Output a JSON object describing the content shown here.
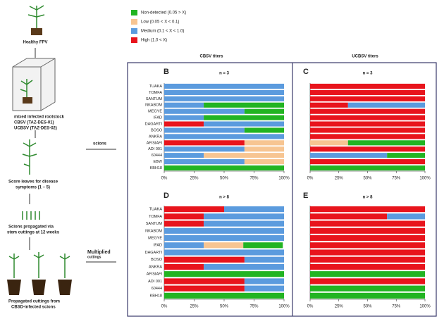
{
  "diagram": {
    "healthy": "Healthy FPV",
    "rootstock": "mixed infected rootstock",
    "cbsv_isolate": "CBSV (TAZ-DES-01)",
    "ucbsv_isolate": "UCBSV (TAZ-DES-02)",
    "scions": "scions",
    "score": "Score leaves for disease",
    "score2": "symptoms (1 – 5)",
    "propagated": "Scions propagated via",
    "propagated2": "stem cuttings at 12 weeks",
    "multiplied": "Multiplied",
    "multiplied2": "cuttings",
    "cuttings": "Propagated cuttings from",
    "cuttings2": "CBSD-infected  scions",
    "cbsv_header": "CBSV titers",
    "ucbsv_header": "UCBSV titers"
  },
  "chart_data": [
    {
      "type": "stacked-bar",
      "label": "B",
      "n_label": "n = 3",
      "categories": [
        "TUAKA",
        "TOMFA",
        "SANTUM",
        "NKABOM",
        "MEGYE",
        "IFAD",
        "DAGARTI",
        "BOSO",
        "ANKRA",
        "AFISIAFI",
        "ADI 001",
        "60444",
        "EBW",
        "KBH18"
      ],
      "series": [
        {
          "name": "Non-detected (0.05 > X)",
          "color": "#22b422",
          "values": [
            0,
            0,
            0,
            67,
            33,
            67,
            0,
            33,
            0,
            0,
            0,
            0,
            0,
            100
          ]
        },
        {
          "name": "Low (0.05 < X < 0.1)",
          "color": "#f7c592",
          "values": [
            0,
            0,
            0,
            0,
            0,
            0,
            0,
            0,
            0,
            33,
            33,
            67,
            33,
            0
          ]
        },
        {
          "name": "Medium (0.1 < X < 1.0)",
          "color": "#5b9bde",
          "values": [
            100,
            100,
            100,
            33,
            67,
            33,
            67,
            67,
            100,
            0,
            67,
            33,
            67,
            0
          ]
        },
        {
          "name": "High (1.0 < X)",
          "color": "#e8141c",
          "values": [
            0,
            0,
            0,
            0,
            0,
            0,
            33,
            0,
            0,
            67,
            0,
            0,
            0,
            0
          ]
        }
      ],
      "xlim": [
        0,
        100
      ],
      "xticks": [
        {
          "value": 0,
          "label": "0%"
        },
        {
          "value": 25,
          "label": "25%"
        },
        {
          "value": 50,
          "label": "50%"
        },
        {
          "value": 75,
          "label": "75%"
        },
        {
          "value": 100,
          "label": "100%"
        }
      ]
    },
    {
      "type": "stacked-bar",
      "label": "C",
      "n_label": "n = 3",
      "categories": [
        null,
        null,
        null,
        null,
        null,
        null,
        null,
        null,
        null,
        null,
        null,
        null,
        null,
        null
      ],
      "series": [
        {
          "color": "#22b422",
          "values": [
            0,
            0,
            0,
            0,
            0,
            0,
            0,
            0,
            0,
            67,
            0,
            33,
            0,
            100
          ]
        },
        {
          "color": "#f7c592",
          "values": [
            0,
            0,
            0,
            0,
            0,
            0,
            0,
            0,
            0,
            33,
            0,
            0,
            0,
            0
          ]
        },
        {
          "color": "#5b9bde",
          "values": [
            0,
            0,
            0,
            67,
            0,
            0,
            0,
            0,
            0,
            0,
            0,
            67,
            0,
            0
          ]
        },
        {
          "color": "#e8141c",
          "values": [
            100,
            100,
            100,
            33,
            100,
            100,
            100,
            100,
            100,
            0,
            100,
            0,
            100,
            0
          ]
        }
      ],
      "xlim": [
        0,
        100
      ],
      "xticks": [
        {
          "value": 0,
          "label": "0%"
        },
        {
          "value": 25,
          "label": "25%"
        },
        {
          "value": 50,
          "label": "50%"
        },
        {
          "value": 75,
          "label": "75%"
        },
        {
          "value": 100,
          "label": "100%"
        }
      ]
    },
    {
      "type": "stacked-bar",
      "label": "D",
      "n_label": "n > 8",
      "categories": [
        "TUAKA",
        "TOMFA",
        "SANTUM",
        "NKABOM",
        "MEGYE",
        "IFAD",
        "DAGARTI",
        "BOSO",
        "ANKRA",
        "AFISIAFI",
        "ADI 001",
        "60444",
        "KBH18"
      ],
      "series": [
        {
          "color": "#22b422",
          "values": [
            0,
            0,
            0,
            0,
            0,
            33,
            0,
            0,
            0,
            100,
            0,
            0,
            100
          ]
        },
        {
          "color": "#f7c592",
          "values": [
            0,
            0,
            0,
            0,
            0,
            33,
            0,
            0,
            0,
            0,
            0,
            0,
            0
          ]
        },
        {
          "color": "#5b9bde",
          "values": [
            50,
            67,
            67,
            100,
            100,
            33,
            100,
            33,
            67,
            0,
            33,
            33,
            0
          ]
        },
        {
          "color": "#e8141c",
          "values": [
            50,
            33,
            33,
            0,
            0,
            0,
            0,
            67,
            33,
            0,
            67,
            67,
            0
          ]
        }
      ],
      "xlim": [
        0,
        100
      ],
      "xticks": [
        {
          "value": 0,
          "label": "0%"
        },
        {
          "value": 25,
          "label": "25%"
        },
        {
          "value": 50,
          "label": "50%"
        },
        {
          "value": 75,
          "label": "75%"
        },
        {
          "value": 100,
          "label": "100%"
        }
      ]
    },
    {
      "type": "stacked-bar",
      "label": "E",
      "n_label": "n > 8",
      "categories": [
        null,
        null,
        null,
        null,
        null,
        null,
        null,
        null,
        null,
        null,
        null,
        null,
        null
      ],
      "series": [
        {
          "color": "#22b422",
          "values": [
            0,
            0,
            0,
            0,
            0,
            0,
            0,
            0,
            0,
            100,
            0,
            100,
            100
          ]
        },
        {
          "color": "#f7c592",
          "values": [
            0,
            0,
            0,
            0,
            0,
            0,
            0,
            0,
            0,
            0,
            0,
            0,
            0
          ]
        },
        {
          "color": "#5b9bde",
          "values": [
            0,
            33,
            0,
            0,
            0,
            0,
            0,
            0,
            0,
            0,
            0,
            0,
            0
          ]
        },
        {
          "color": "#e8141c",
          "values": [
            100,
            67,
            100,
            100,
            100,
            100,
            100,
            100,
            100,
            0,
            100,
            0,
            0
          ]
        }
      ],
      "xlim": [
        0,
        100
      ],
      "xticks": [
        {
          "value": 0,
          "label": "0%"
        },
        {
          "value": 25,
          "label": "25%"
        },
        {
          "value": 50,
          "label": "50%"
        },
        {
          "value": 75,
          "label": "75%"
        },
        {
          "value": 100,
          "label": "100%"
        }
      ]
    }
  ]
}
